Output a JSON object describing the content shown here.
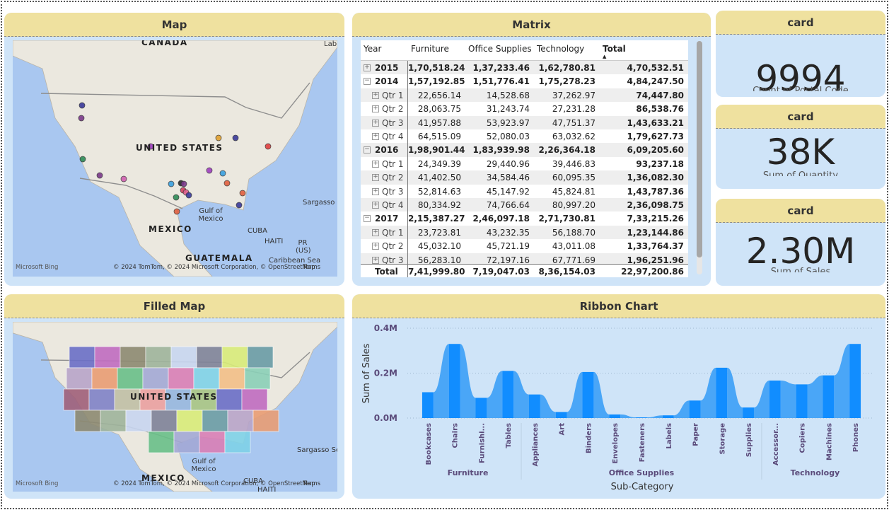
{
  "map": {
    "title": "Map",
    "labels": [
      "CANADA",
      "UNITED STATES",
      "MEXICO",
      "Gulf of Mexico",
      "CUBA",
      "HAITI",
      "PR (US)",
      "GUATEMALA",
      "Caribbean Sea",
      "Sargasso",
      "Lab"
    ],
    "logo": "Microsoft Bing",
    "attribution": "© 2024 TomTom, © 2024 Microsoft Corporation, © OpenStreetMap",
    "terms": "Terms"
  },
  "matrix": {
    "title": "Matrix",
    "columns": [
      "Year",
      "Furniture",
      "Office Supplies",
      "Technology",
      "Total"
    ],
    "rows": [
      [
        "2015",
        "1,70,518.24",
        "1,37,233.46",
        "1,62,780.81",
        "4,70,532.51"
      ],
      [
        "2014",
        "1,57,192.85",
        "1,51,776.41",
        "1,75,278.23",
        "4,84,247.50"
      ],
      [
        "Qtr 1",
        "22,656.14",
        "14,528.68",
        "37,262.97",
        "74,447.80"
      ],
      [
        "Qtr 2",
        "28,063.75",
        "31,243.74",
        "27,231.28",
        "86,538.76"
      ],
      [
        "Qtr 3",
        "41,957.88",
        "53,923.97",
        "47,751.37",
        "1,43,633.21"
      ],
      [
        "Qtr 4",
        "64,515.09",
        "52,080.03",
        "63,032.62",
        "1,79,627.73"
      ],
      [
        "2016",
        "1,98,901.44",
        "1,83,939.98",
        "2,26,364.18",
        "6,09,205.60"
      ],
      [
        "Qtr 1",
        "24,349.39",
        "29,440.96",
        "39,446.83",
        "93,237.18"
      ],
      [
        "Qtr 2",
        "41,402.50",
        "34,584.46",
        "60,095.35",
        "1,36,082.30"
      ],
      [
        "Qtr 3",
        "52,814.63",
        "45,147.92",
        "45,824.81",
        "1,43,787.36"
      ],
      [
        "Qtr 4",
        "80,334.92",
        "74,766.64",
        "80,997.20",
        "2,36,098.75"
      ],
      [
        "2017",
        "2,15,387.27",
        "2,46,097.18",
        "2,71,730.81",
        "7,33,215.26"
      ],
      [
        "Qtr 1",
        "23,723.81",
        "43,232.35",
        "56,188.70",
        "1,23,144.86"
      ],
      [
        "Qtr 2",
        "45,032.10",
        "45,721.19",
        "43,011.08",
        "1,33,764.37"
      ],
      [
        "Qtr 3",
        "56,283.10",
        "72,197.16",
        "67,771.69",
        "1,96,251.96"
      ]
    ],
    "total": [
      "Total",
      "7,41,999.80",
      "7,19,047.03",
      "8,36,154.03",
      "22,97,200.86"
    ]
  },
  "cards": [
    {
      "title": "card",
      "value": "9994",
      "label": "Count of Postal Code"
    },
    {
      "title": "card",
      "value": "38K",
      "label": "Sum of Quantity"
    },
    {
      "title": "card",
      "value": "2.30M",
      "label": "Sum of Sales"
    }
  ],
  "filled_map": {
    "title": "Filled Map",
    "labels": [
      "UNITED STATES",
      "Gulf of Mexico",
      "Sargasso Se",
      "MEXICO",
      "CUBA",
      "HAITI"
    ],
    "logo": "Microsoft Bing",
    "attribution": "© 2024 TomTom, © 2024 Microsoft Corporation, © OpenStreetMap",
    "terms": "Terms"
  },
  "ribbon_chart": {
    "type": "ribbon",
    "title": "Ribbon Chart",
    "x_label": "Sub-Category",
    "y_label": "Sum of Sales",
    "ylim": [
      0,
      0.4
    ],
    "yticks": [
      {
        "value": 0,
        "label": "0.0M"
      },
      {
        "value": 0.2,
        "label": "0.2M"
      },
      {
        "value": 0.4,
        "label": "0.4M"
      }
    ],
    "grid": true,
    "color": "#118dff",
    "ribbon_color": "#4aa6f7",
    "groups": [
      {
        "name": "Furniture",
        "categories": [
          "Bookcases",
          "Chairs",
          "Furnishi...",
          "Tables"
        ],
        "values": [
          0.115,
          0.33,
          0.09,
          0.21
        ]
      },
      {
        "name": "Office Supplies",
        "categories": [
          "Appliances",
          "Art",
          "Binders",
          "Envelopes",
          "Fasteners",
          "Labels",
          "Paper",
          "Storage",
          "Supplies"
        ],
        "values": [
          0.105,
          0.027,
          0.205,
          0.016,
          0.003,
          0.012,
          0.078,
          0.224,
          0.047
        ]
      },
      {
        "name": "Technology",
        "categories": [
          "Accessor...",
          "Copiers",
          "Machines",
          "Phones"
        ],
        "values": [
          0.167,
          0.15,
          0.19,
          0.33
        ]
      }
    ]
  }
}
